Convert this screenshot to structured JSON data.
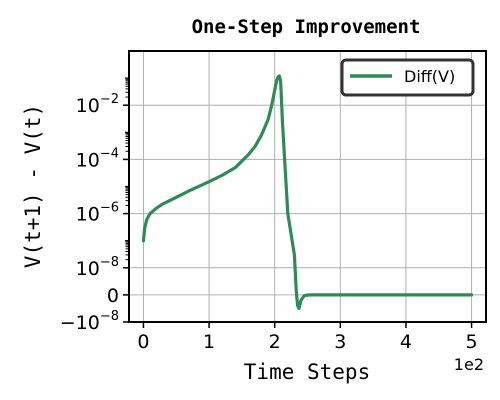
{
  "chart_data": {
    "type": "line",
    "title": "One-Step Improvement",
    "xlabel": "Time Steps",
    "ylabel": "V(t+1) - V(t)",
    "x_offset_label": "1e2",
    "xlim": [
      -0.22,
      5.22
    ],
    "x_ticks": [
      {
        "value": 0,
        "label": "0"
      },
      {
        "value": 1,
        "label": "1"
      },
      {
        "value": 2,
        "label": "2"
      },
      {
        "value": 3,
        "label": "3"
      },
      {
        "value": 4,
        "label": "4"
      },
      {
        "value": 5,
        "label": "5"
      }
    ],
    "y_scale": "symlog",
    "y_linthresh": 1e-08,
    "ylim": [
      -1e-08,
      1
    ],
    "y_ticks": [
      {
        "value": -1e-08,
        "base": "−10",
        "exp": "−8"
      },
      {
        "value": 0,
        "base": "0",
        "exp": ""
      },
      {
        "value": 1e-08,
        "base": "10",
        "exp": "−8"
      },
      {
        "value": 1e-06,
        "base": "10",
        "exp": "−6"
      },
      {
        "value": 0.0001,
        "base": "10",
        "exp": "−4"
      },
      {
        "value": 0.01,
        "base": "10",
        "exp": "−2"
      }
    ],
    "grid": true,
    "legend_position": "top-right",
    "series": [
      {
        "name": "Diff(V)",
        "color": "#2e8b57",
        "x": [
          0,
          0.02,
          0.05,
          0.1,
          0.2,
          0.3,
          0.5,
          0.7,
          1.0,
          1.2,
          1.4,
          1.6,
          1.7,
          1.8,
          1.9,
          1.95,
          2.0,
          2.03,
          2.05,
          2.07,
          2.09,
          2.12,
          2.2,
          2.3,
          2.33,
          2.35,
          2.37,
          2.4,
          2.45,
          2.5,
          2.6,
          3.0,
          4.0,
          5.0
        ],
        "y": [
          1e-07,
          3e-07,
          6e-07,
          1e-06,
          1.6e-06,
          2.3e-06,
          4e-06,
          7e-06,
          1.5e-05,
          2.6e-05,
          5e-05,
          0.00015,
          0.0003,
          0.0008,
          0.003,
          0.009,
          0.035,
          0.08,
          0.11,
          0.12,
          0.08,
          0.002,
          1e-06,
          3e-08,
          1e-09,
          -4e-09,
          -5e-09,
          -2e-09,
          -3e-10,
          -4e-11,
          0,
          0,
          0,
          0
        ]
      }
    ]
  }
}
